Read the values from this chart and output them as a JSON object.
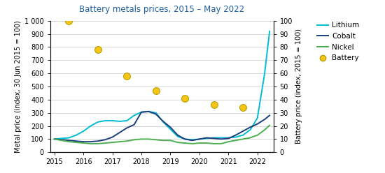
{
  "title": "Battery metals prices, 2015 – May 2022",
  "ylabel_left": "Metal price (index, 30 Jun 2015 = 100)",
  "ylabel_right": "Battery price (index, 2015 = 100)",
  "ylim_left": [
    0,
    1000
  ],
  "ylim_right": [
    0,
    100
  ],
  "yticks_left": [
    0,
    100,
    200,
    300,
    400,
    500,
    600,
    700,
    800,
    900,
    1000
  ],
  "yticks_right": [
    0,
    10,
    20,
    30,
    40,
    50,
    60,
    70,
    80,
    90,
    100
  ],
  "xlim": [
    2014.85,
    2022.55
  ],
  "xticks": [
    2015,
    2016,
    2017,
    2018,
    2019,
    2020,
    2021,
    2022
  ],
  "lithium_x": [
    2015.0,
    2015.25,
    2015.5,
    2015.75,
    2016.0,
    2016.25,
    2016.5,
    2016.75,
    2017.0,
    2017.25,
    2017.5,
    2017.75,
    2018.0,
    2018.25,
    2018.5,
    2018.75,
    2019.0,
    2019.25,
    2019.5,
    2019.75,
    2020.0,
    2020.25,
    2020.5,
    2020.75,
    2021.0,
    2021.25,
    2021.5,
    2021.75,
    2022.0,
    2022.25,
    2022.42
  ],
  "lithium_y": [
    100,
    105,
    110,
    130,
    160,
    200,
    230,
    240,
    240,
    235,
    240,
    280,
    305,
    310,
    300,
    230,
    175,
    120,
    100,
    95,
    100,
    105,
    110,
    110,
    110,
    115,
    130,
    170,
    260,
    600,
    920
  ],
  "cobalt_x": [
    2015.0,
    2015.25,
    2015.5,
    2015.75,
    2016.0,
    2016.25,
    2016.5,
    2016.75,
    2017.0,
    2017.25,
    2017.5,
    2017.75,
    2018.0,
    2018.25,
    2018.5,
    2018.75,
    2019.0,
    2019.25,
    2019.5,
    2019.75,
    2020.0,
    2020.25,
    2020.5,
    2020.75,
    2021.0,
    2021.25,
    2021.5,
    2021.75,
    2022.0,
    2022.25,
    2022.42
  ],
  "cobalt_y": [
    100,
    95,
    90,
    85,
    80,
    80,
    85,
    95,
    115,
    150,
    185,
    210,
    305,
    310,
    290,
    235,
    190,
    130,
    100,
    90,
    100,
    110,
    105,
    100,
    105,
    130,
    160,
    190,
    215,
    250,
    280
  ],
  "nickel_x": [
    2015.0,
    2015.25,
    2015.5,
    2015.75,
    2016.0,
    2016.25,
    2016.5,
    2016.75,
    2017.0,
    2017.25,
    2017.5,
    2017.75,
    2018.0,
    2018.25,
    2018.5,
    2018.75,
    2019.0,
    2019.25,
    2019.5,
    2019.75,
    2020.0,
    2020.25,
    2020.5,
    2020.75,
    2021.0,
    2021.25,
    2021.5,
    2021.75,
    2022.0,
    2022.25,
    2022.42
  ],
  "nickel_y": [
    100,
    90,
    80,
    75,
    70,
    65,
    65,
    70,
    75,
    80,
    85,
    95,
    100,
    100,
    95,
    90,
    90,
    75,
    70,
    65,
    70,
    70,
    65,
    65,
    80,
    90,
    100,
    110,
    130,
    170,
    205
  ],
  "battery_x": [
    2015.5,
    2016.5,
    2017.5,
    2018.5,
    2019.5,
    2020.5,
    2021.5
  ],
  "battery_y": [
    100,
    78,
    58,
    47,
    41,
    36,
    34
  ],
  "lithium_color": "#00bcd4",
  "cobalt_color": "#1a3e7a",
  "nickel_color": "#4caf50",
  "battery_marker_face": "#f5c518",
  "battery_marker_edge": "#b8a000",
  "background_color": "#ffffff",
  "grid_color": "#d0d0d0",
  "title_fontsize": 8.5,
  "axis_label_fontsize": 7,
  "tick_fontsize": 7,
  "title_color": "#2060a0",
  "legend_fontsize": 7.5
}
